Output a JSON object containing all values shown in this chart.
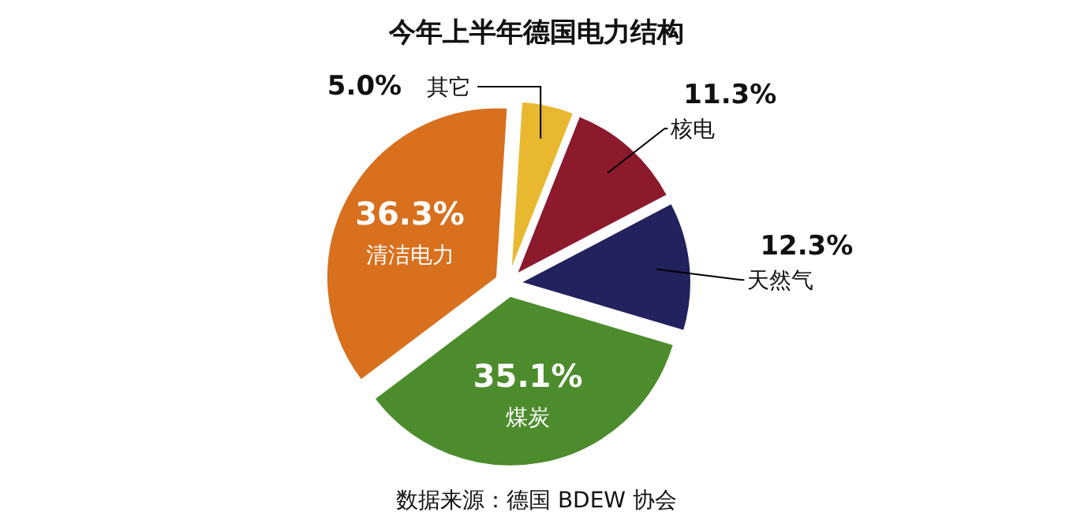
{
  "chart_data": {
    "type": "pie",
    "title": "今年上半年德国电力结构",
    "categories": [
      "其它",
      "核电",
      "天然气",
      "煤炭",
      "清洁电力"
    ],
    "values": [
      5.0,
      11.3,
      12.3,
      35.1,
      36.3
    ],
    "value_labels": [
      "5.0%",
      "11.3%",
      "12.3%",
      "35.1%",
      "36.3%"
    ],
    "colors": [
      "#e8b830",
      "#8c1a2c",
      "#22225e",
      "#4c8c2c",
      "#d8701e"
    ],
    "annotations": [
      "数据来源：德国 BDEW 协会"
    ]
  }
}
